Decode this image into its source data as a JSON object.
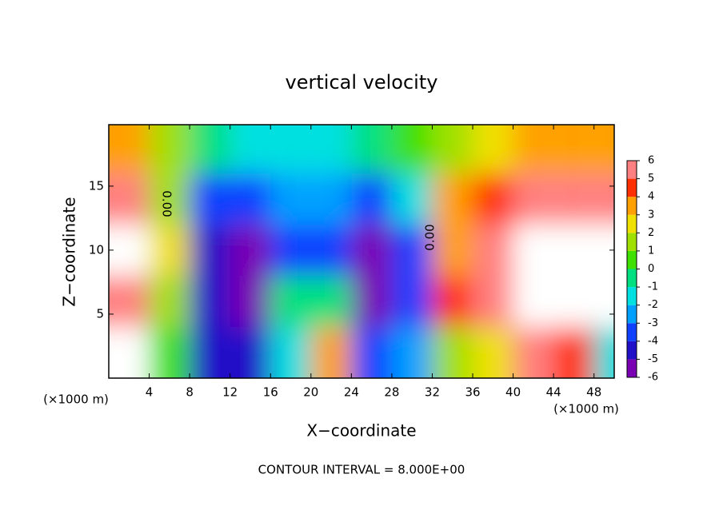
{
  "chart_data": {
    "type": "contour",
    "title": "vertical velocity",
    "x_label": "X−coordinate",
    "y_label": "Z−coordinate",
    "x_unit": "(×1000 m)",
    "x_unit_right": "(×1000 m)",
    "note": "CONTOUR INTERVAL = 8.000E+00",
    "contour_labels": [
      "0.00",
      "0.00"
    ],
    "xlim": [
      0,
      50
    ],
    "ylim": [
      0,
      19.8
    ],
    "xticks": [
      4,
      8,
      12,
      16,
      20,
      24,
      28,
      32,
      36,
      40,
      44,
      48
    ],
    "yticks": [
      5,
      10,
      15
    ],
    "x": [
      2,
      6,
      10,
      14,
      18,
      22,
      26,
      30,
      34,
      38,
      42,
      46,
      50
    ],
    "y": [
      2,
      6,
      10,
      14,
      18
    ],
    "z": [
      [
        6,
        0,
        -5,
        -5,
        -2,
        3,
        -4,
        -3,
        1,
        2,
        5,
        4,
        -2
      ],
      [
        5,
        1,
        -5,
        -6,
        -1,
        -1,
        -6,
        -4,
        4,
        5,
        6,
        6,
        6
      ],
      [
        6,
        2,
        -5,
        -6,
        -4,
        -4,
        -6,
        -4,
        3,
        5,
        6,
        6,
        6
      ],
      [
        5,
        1,
        -4,
        -4,
        -3,
        -3,
        -4,
        -2,
        3,
        4,
        5,
        5,
        5
      ],
      [
        3,
        1,
        -1,
        -2,
        -2,
        -2,
        -1,
        0,
        1,
        2,
        3,
        3,
        3
      ]
    ],
    "levels": [
      -6,
      -5,
      -4,
      -3,
      -2,
      -1,
      0,
      1,
      2,
      3,
      4,
      5,
      6
    ],
    "colors": [
      "#7a00b4",
      "#2010c8",
      "#1040ff",
      "#00a0ff",
      "#00e0e0",
      "#00e080",
      "#40e000",
      "#a0e000",
      "#f0e000",
      "#ffa000",
      "#ff3000",
      "#ff8080"
    ],
    "over_color": "#ffffff"
  }
}
